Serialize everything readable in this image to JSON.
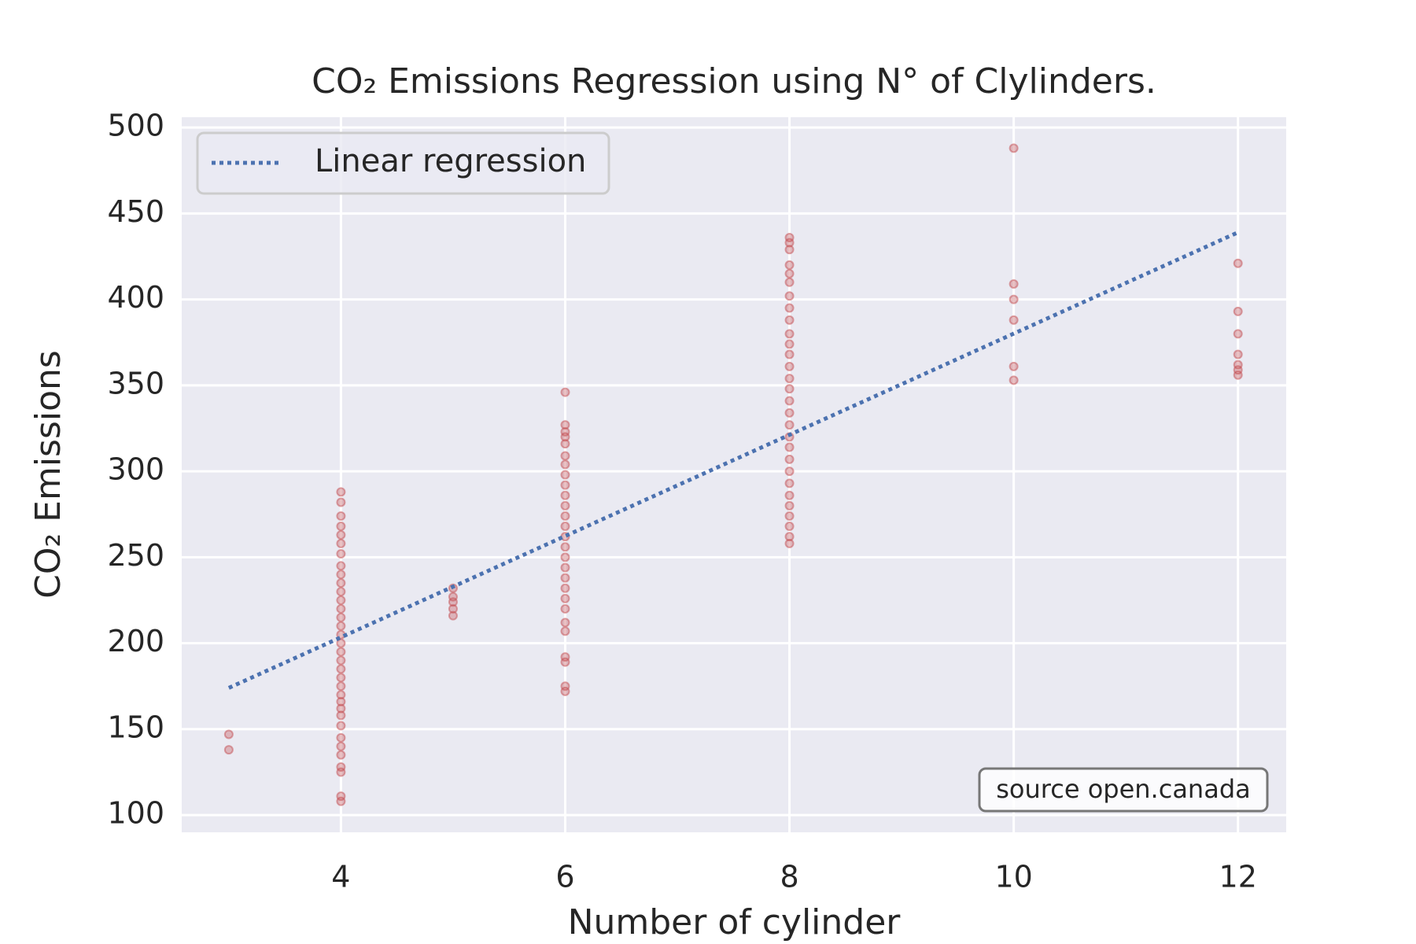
{
  "chart_data": {
    "type": "scatter",
    "title": "CO₂ Emissions Regression using N° of Clylinders.",
    "xlabel": "Number of cylinder",
    "ylabel": "CO₂ Emissions",
    "annotation": "source open.canada",
    "xlim": [
      2.58,
      12.43
    ],
    "ylim": [
      90,
      506
    ],
    "xticks": [
      4,
      6,
      8,
      10,
      12
    ],
    "yticks": [
      100,
      150,
      200,
      250,
      300,
      350,
      400,
      450,
      500
    ],
    "grid": true,
    "legend": "upper left",
    "series": [
      {
        "color": "#c44e52",
        "x": [
          3,
          3,
          4,
          4,
          4,
          4,
          4,
          4,
          4,
          4,
          4,
          4,
          4,
          4,
          4,
          4,
          4,
          4,
          4,
          4,
          4,
          4,
          4,
          4,
          4,
          4,
          4,
          4,
          4,
          4,
          4,
          4,
          4,
          4,
          4,
          4,
          5,
          5,
          5,
          5,
          5,
          6,
          6,
          6,
          6,
          6,
          6,
          6,
          6,
          6,
          6,
          6,
          6,
          6,
          6,
          6,
          6,
          6,
          6,
          6,
          6,
          6,
          6,
          6,
          6,
          6,
          6,
          6,
          8,
          8,
          8,
          8,
          8,
          8,
          8,
          8,
          8,
          8,
          8,
          8,
          8,
          8,
          8,
          8,
          8,
          8,
          8,
          8,
          8,
          8,
          8,
          8,
          8,
          8,
          8,
          8,
          8,
          10,
          10,
          10,
          10,
          10,
          10,
          12,
          12,
          12,
          12,
          12,
          12,
          12
        ],
        "values": [
          147,
          138,
          108,
          111,
          125,
          128,
          135,
          140,
          145,
          152,
          158,
          162,
          166,
          170,
          175,
          180,
          185,
          190,
          195,
          200,
          205,
          210,
          215,
          220,
          225,
          230,
          235,
          240,
          245,
          252,
          258,
          263,
          268,
          274,
          282,
          288,
          216,
          220,
          224,
          227,
          232,
          172,
          175,
          189,
          192,
          207,
          212,
          220,
          226,
          232,
          238,
          244,
          250,
          256,
          262,
          268,
          274,
          280,
          286,
          292,
          298,
          304,
          309,
          316,
          320,
          323,
          327,
          346,
          258,
          262,
          268,
          274,
          280,
          286,
          293,
          300,
          307,
          314,
          320,
          327,
          334,
          341,
          348,
          354,
          361,
          368,
          374,
          380,
          388,
          395,
          402,
          410,
          415,
          420,
          429,
          433,
          436,
          353,
          361,
          388,
          400,
          409,
          488,
          356,
          359,
          362,
          368,
          380,
          393,
          421
        ]
      },
      {
        "name": "Linear regression",
        "color": "#4c72b0",
        "style": "dotted",
        "x": [
          3,
          12
        ],
        "values": [
          174,
          439
        ]
      }
    ]
  }
}
